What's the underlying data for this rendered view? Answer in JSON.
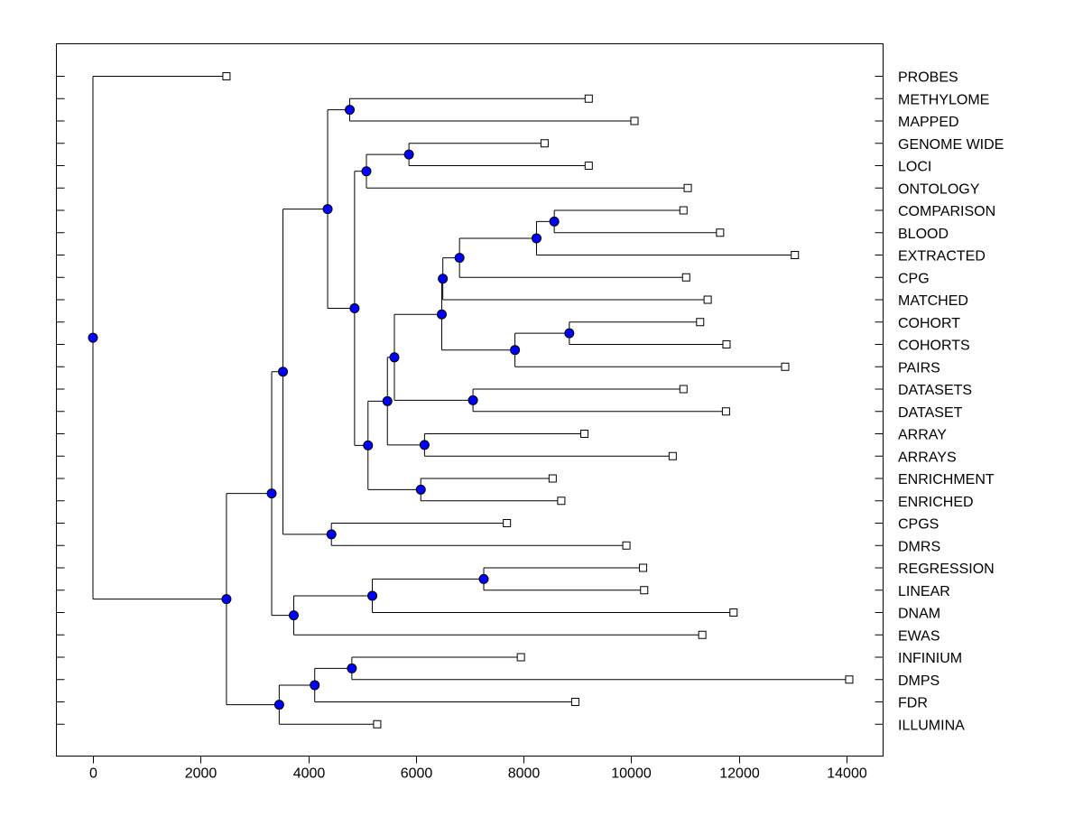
{
  "chart_data": {
    "type": "dendrogram",
    "orientation": "horizontal",
    "title": "",
    "xlabel": "",
    "ylabel": "",
    "xlim": [
      -700,
      14700
    ],
    "xticks": [
      0,
      2000,
      4000,
      6000,
      8000,
      10000,
      12000,
      14000
    ],
    "xtick_labels": [
      "0",
      "2000",
      "4000",
      "6000",
      "8000",
      "10000",
      "12000",
      "14000"
    ],
    "node_color": "#0000ff",
    "leaf_color": "#ffffff",
    "line_color": "#000000",
    "leaves": [
      {
        "id": "PROBES",
        "x": 2480
      },
      {
        "id": "METHYLOME",
        "x": 9210
      },
      {
        "id": "MAPPED",
        "x": 10060
      },
      {
        "id": "GENOME WIDE",
        "x": 8390
      },
      {
        "id": "LOCI",
        "x": 9210
      },
      {
        "id": "ONTOLOGY",
        "x": 11050
      },
      {
        "id": "COMPARISON",
        "x": 10970
      },
      {
        "id": "BLOOD",
        "x": 11650
      },
      {
        "id": "EXTRACTED",
        "x": 13040
      },
      {
        "id": "CPG",
        "x": 11020
      },
      {
        "id": "MATCHED",
        "x": 11420
      },
      {
        "id": "COHORT",
        "x": 11280
      },
      {
        "id": "COHORTS",
        "x": 11770
      },
      {
        "id": "PAIRS",
        "x": 12860
      },
      {
        "id": "DATASETS",
        "x": 10970
      },
      {
        "id": "DATASET",
        "x": 11760
      },
      {
        "id": "ARRAY",
        "x": 9130
      },
      {
        "id": "ARRAYS",
        "x": 10770
      },
      {
        "id": "ENRICHMENT",
        "x": 8540
      },
      {
        "id": "ENRICHED",
        "x": 8700
      },
      {
        "id": "CPGS",
        "x": 7690
      },
      {
        "id": "DMRS",
        "x": 9910
      },
      {
        "id": "REGRESSION",
        "x": 10220
      },
      {
        "id": "LINEAR",
        "x": 10240
      },
      {
        "id": "DNAM",
        "x": 11900
      },
      {
        "id": "EWAS",
        "x": 11320
      },
      {
        "id": "INFINIUM",
        "x": 7950
      },
      {
        "id": "DMPS",
        "x": 14050
      },
      {
        "id": "FDR",
        "x": 8960
      },
      {
        "id": "ILLUMINA",
        "x": 5280
      }
    ],
    "merges": [
      {
        "id": "m1",
        "children": [
          "METHYLOME",
          "MAPPED"
        ],
        "x": 4770
      },
      {
        "id": "m2",
        "children": [
          "GENOME WIDE",
          "LOCI"
        ],
        "x": 5870
      },
      {
        "id": "m3",
        "children": [
          "m2",
          "ONTOLOGY"
        ],
        "x": 5080
      },
      {
        "id": "m4",
        "children": [
          "COMPARISON",
          "BLOOD"
        ],
        "x": 8570
      },
      {
        "id": "m5",
        "children": [
          "m4",
          "EXTRACTED"
        ],
        "x": 8240
      },
      {
        "id": "m6",
        "children": [
          "m5",
          "CPG"
        ],
        "x": 6810
      },
      {
        "id": "m7",
        "children": [
          "m6",
          "MATCHED"
        ],
        "x": 6500
      },
      {
        "id": "m8",
        "children": [
          "COHORT",
          "COHORTS"
        ],
        "x": 8850
      },
      {
        "id": "m9",
        "children": [
          "m8",
          "PAIRS"
        ],
        "x": 7840
      },
      {
        "id": "m10",
        "children": [
          "m7",
          "m9"
        ],
        "x": 6480
      },
      {
        "id": "m11",
        "children": [
          "DATASETS",
          "DATASET"
        ],
        "x": 7060
      },
      {
        "id": "m12",
        "children": [
          "m10",
          "m11"
        ],
        "x": 5600
      },
      {
        "id": "m13",
        "children": [
          "ARRAY",
          "ARRAYS"
        ],
        "x": 6160
      },
      {
        "id": "m14",
        "children": [
          "m12",
          "m13"
        ],
        "x": 5470
      },
      {
        "id": "m15",
        "children": [
          "ENRICHMENT",
          "ENRICHED"
        ],
        "x": 6090
      },
      {
        "id": "m16",
        "children": [
          "m14",
          "m15"
        ],
        "x": 5110
      },
      {
        "id": "m17",
        "children": [
          "m3",
          "m16"
        ],
        "x": 4860
      },
      {
        "id": "m18",
        "children": [
          "m1",
          "m17"
        ],
        "x": 4360
      },
      {
        "id": "m19",
        "children": [
          "CPGS",
          "DMRS"
        ],
        "x": 4430
      },
      {
        "id": "m20",
        "children": [
          "m18",
          "m19"
        ],
        "x": 3530
      },
      {
        "id": "m21",
        "children": [
          "REGRESSION",
          "LINEAR"
        ],
        "x": 7260
      },
      {
        "id": "m22",
        "children": [
          "m21",
          "DNAM"
        ],
        "x": 5190
      },
      {
        "id": "m23",
        "children": [
          "m22",
          "EWAS"
        ],
        "x": 3730
      },
      {
        "id": "m24",
        "children": [
          "m20",
          "m23"
        ],
        "x": 3320
      },
      {
        "id": "m25",
        "children": [
          "INFINIUM",
          "DMPS"
        ],
        "x": 4810
      },
      {
        "id": "m26",
        "children": [
          "m25",
          "FDR"
        ],
        "x": 4120
      },
      {
        "id": "m27",
        "children": [
          "m26",
          "ILLUMINA"
        ],
        "x": 3460
      },
      {
        "id": "m28",
        "children": [
          "m24",
          "m27"
        ],
        "x": 2480
      },
      {
        "id": "m29",
        "children": [
          "PROBES",
          "m28"
        ],
        "x": 0
      }
    ]
  }
}
